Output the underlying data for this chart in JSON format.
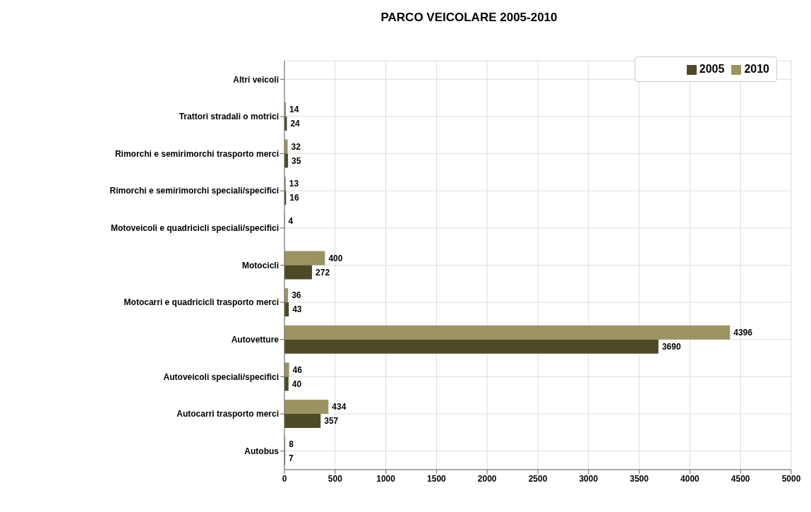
{
  "chart_data": {
    "type": "bar",
    "orientation": "horizontal",
    "title": "PARCO VEICOLARE 2005-2010",
    "categories": [
      "Altri veicoli",
      "Trattori stradali o motrici",
      "Rimorchi e semirimorchi trasporto merci",
      "Rimorchi e semirimorchi speciali/specifici",
      "Motoveicoli e quadricicli speciali/specifici",
      "Motocicli",
      "Motocarri e quadricicli trasporto merci",
      "Autovetture",
      "Autoveicoli speciali/specifici",
      "Autocarri trasporto merci",
      "Autobus"
    ],
    "series": [
      {
        "name": "2010",
        "color": "#9c9460",
        "values": [
          null,
          14,
          32,
          13,
          4,
          400,
          36,
          4396,
          46,
          434,
          8
        ]
      },
      {
        "name": "2005",
        "color": "#4f4a26",
        "values": [
          null,
          24,
          35,
          16,
          null,
          272,
          43,
          3690,
          40,
          357,
          7
        ]
      }
    ],
    "xlim": [
      0,
      5000
    ],
    "xticks": [
      0,
      500,
      1000,
      1500,
      2000,
      2500,
      3000,
      3500,
      4000,
      4500,
      5000
    ],
    "grid": true,
    "legend": "top right",
    "data_labels": true
  }
}
